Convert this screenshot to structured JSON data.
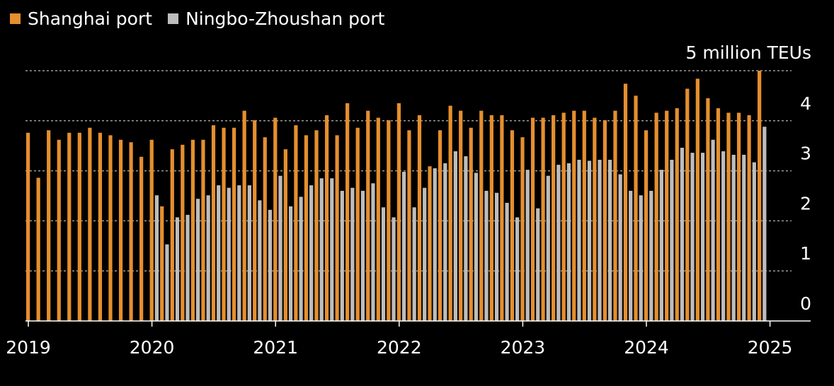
{
  "colors": {
    "shanghai": "#e58f2e",
    "ningbo": "#bdbdbd",
    "background": "#000000",
    "text": "#ffffff",
    "grid": "#9a9a9a"
  },
  "chart_data": {
    "type": "bar",
    "unit_label": "5 million TEUs",
    "legend_position": "top-left",
    "grid": true,
    "ylim": [
      0,
      5
    ],
    "yticks": [
      "0",
      "1",
      "2",
      "3",
      "4"
    ],
    "xticks": [
      "2019",
      "2020",
      "2021",
      "2022",
      "2023",
      "2024",
      "2025"
    ],
    "x_start": "2019-01",
    "series": [
      {
        "name": "Shanghai port",
        "values": [
          3.76,
          2.86,
          3.81,
          3.62,
          3.76,
          3.76,
          3.86,
          3.76,
          3.71,
          3.62,
          3.57,
          3.28,
          3.62,
          2.29,
          3.43,
          3.52,
          3.62,
          3.62,
          3.91,
          3.86,
          3.86,
          4.2,
          4.01,
          3.67,
          4.06,
          3.43,
          3.91,
          3.71,
          3.81,
          4.11,
          3.71,
          4.35,
          3.86,
          4.2,
          4.06,
          4.01,
          4.35,
          3.81,
          4.11,
          3.09,
          3.81,
          4.3,
          4.2,
          3.86,
          4.2,
          4.11,
          4.11,
          3.81,
          3.67,
          4.06,
          4.06,
          4.11,
          4.16,
          4.2,
          4.2,
          4.06,
          4.01,
          4.2,
          4.74,
          4.5,
          3.81,
          4.16,
          4.2,
          4.25,
          4.64,
          4.84,
          4.45,
          4.25,
          4.16,
          4.16,
          4.11,
          5.0
        ]
      },
      {
        "name": "Ningbo-Zhoushan port",
        "values": [
          null,
          null,
          null,
          null,
          null,
          null,
          null,
          null,
          null,
          null,
          null,
          null,
          2.51,
          1.53,
          2.07,
          2.12,
          2.44,
          2.51,
          2.71,
          2.66,
          2.71,
          2.71,
          2.41,
          2.22,
          2.9,
          2.29,
          2.48,
          2.71,
          2.85,
          2.85,
          2.6,
          2.66,
          2.6,
          2.75,
          2.27,
          2.07,
          2.98,
          2.27,
          2.66,
          3.05,
          3.15,
          3.39,
          3.29,
          2.96,
          2.6,
          2.56,
          2.36,
          2.07,
          3.02,
          2.25,
          2.9,
          3.12,
          3.15,
          3.22,
          3.2,
          3.22,
          3.22,
          2.93,
          2.6,
          2.51,
          2.6,
          3.02,
          3.22,
          3.46,
          3.36,
          3.36,
          3.62,
          3.39,
          3.32,
          3.32,
          3.17,
          3.88
        ]
      }
    ]
  }
}
